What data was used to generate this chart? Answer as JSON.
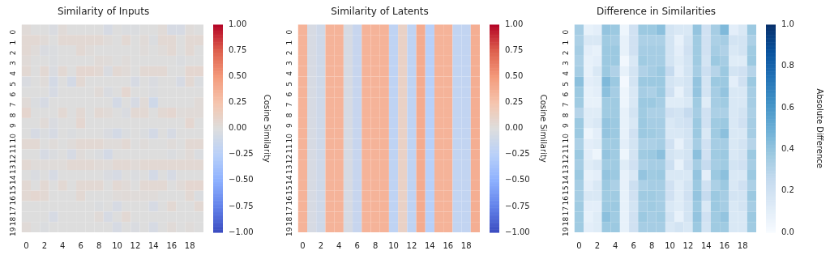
{
  "chart_data": [
    {
      "type": "heatmap",
      "title": "Similarity of Inputs",
      "clabel": "Cosine Similarity",
      "clim": [
        -1,
        1
      ],
      "cticks": [
        {
          "value": -1,
          "label": "−1.00"
        },
        {
          "value": -0.75,
          "label": "−0.75"
        },
        {
          "value": -0.5,
          "label": "−0.50"
        },
        {
          "value": -0.25,
          "label": "−0.25"
        },
        {
          "value": 0,
          "label": "0.00"
        },
        {
          "value": 0.25,
          "label": "0.25"
        },
        {
          "value": 0.5,
          "label": "0.50"
        },
        {
          "value": 0.75,
          "label": "0.75"
        },
        {
          "value": 1,
          "label": "1.00"
        }
      ],
      "categories": [
        "0",
        null,
        "2",
        null,
        "4",
        null,
        "6",
        null,
        "8",
        null,
        "10",
        null,
        "12",
        null,
        "14",
        null,
        "16",
        null,
        "18",
        null
      ],
      "y_categories": [
        "0",
        "1",
        "2",
        "3",
        "4",
        "5",
        "6",
        "7",
        "8",
        "9",
        "10",
        "11",
        "12",
        "13",
        "14",
        "15",
        "16",
        "17",
        "18",
        "19"
      ],
      "cells": [
        [
          0.03,
          0,
          0,
          -0.03,
          0.03,
          0,
          0,
          0,
          0,
          -0.05,
          0,
          -0.02,
          -0.02,
          0,
          0,
          0.03,
          -0.05,
          -0.05,
          0.02,
          0
        ],
        [
          0.05,
          0.05,
          0.03,
          0,
          0.05,
          0.05,
          0.05,
          0.05,
          0.05,
          0.02,
          0,
          0.05,
          0,
          0.03,
          -0.02,
          0.05,
          0.05,
          0,
          0.05,
          0.05
        ],
        [
          0.05,
          0.02,
          -0.03,
          -0.02,
          0,
          0,
          0.05,
          0.02,
          0,
          0,
          0,
          0,
          0,
          0.02,
          0,
          0.02,
          0.05,
          0,
          0.05,
          0
        ],
        [
          0.03,
          0,
          0,
          -0.02,
          0,
          0,
          0,
          0,
          0.03,
          0.02,
          0,
          0.02,
          0,
          0,
          0,
          0,
          0,
          -0.02,
          0,
          0
        ],
        [
          0.05,
          0,
          0.05,
          -0.03,
          0.05,
          0,
          0.07,
          0.07,
          0.05,
          -0.03,
          0.05,
          0.03,
          0,
          0.05,
          0.05,
          0.05,
          0,
          0,
          0.07,
          0.07
        ],
        [
          -0.03,
          0,
          0.02,
          -0.07,
          0,
          -0.07,
          0.05,
          0,
          0,
          0,
          0,
          0,
          -0.05,
          0,
          -0.03,
          0,
          0,
          -0.05,
          0.05,
          -0.02
        ],
        [
          0,
          0,
          0,
          -0.05,
          0,
          0,
          0,
          0,
          0.03,
          -0.03,
          0,
          0.07,
          0,
          0,
          -0.02,
          0,
          0,
          0,
          0,
          0
        ],
        [
          0.03,
          -0.02,
          -0.05,
          0,
          0,
          0,
          0,
          0,
          0,
          0,
          -0.07,
          0,
          -0.05,
          0.03,
          -0.1,
          0,
          0,
          0,
          0,
          0.03
        ],
        [
          0.08,
          0,
          0,
          0,
          0.05,
          0,
          0.05,
          0,
          0.05,
          0.03,
          0,
          -0.03,
          0.05,
          0.05,
          0,
          0.05,
          0.07,
          0.02,
          0.03,
          0.03
        ],
        [
          0,
          0,
          0.03,
          -0.03,
          0,
          0,
          0.07,
          0,
          0,
          0,
          0,
          0,
          0,
          0,
          0,
          0,
          0,
          0,
          0.07,
          0
        ],
        [
          0,
          -0.05,
          -0.02,
          -0.05,
          0,
          -0.02,
          0,
          0,
          0,
          -0.03,
          -0.07,
          -0.02,
          0,
          -0.02,
          -0.07,
          0,
          -0.05,
          0,
          0,
          0
        ],
        [
          0.05,
          0.05,
          0,
          0.02,
          0,
          0.02,
          0.05,
          0.05,
          0.05,
          0.02,
          0.02,
          0.05,
          0,
          0.02,
          0,
          0,
          0.02,
          0,
          0.05,
          0.05
        ],
        [
          0,
          0,
          -0.05,
          -0.02,
          0,
          -0.05,
          0.02,
          0,
          -0.02,
          -0.07,
          0,
          0,
          0,
          0,
          0,
          0,
          -0.02,
          0,
          0.03,
          -0.02
        ],
        [
          0.05,
          0.02,
          0.02,
          0.02,
          0.02,
          0.05,
          0.05,
          0.05,
          0.03,
          0.02,
          0.05,
          0.05,
          0.03,
          0.05,
          0.05,
          0.05,
          0.05,
          0.05,
          0.05,
          0.05
        ],
        [
          0,
          -0.03,
          0,
          -0.05,
          0,
          0,
          0,
          0,
          0,
          -0.03,
          -0.05,
          0,
          -0.02,
          0,
          -0.07,
          0,
          -0.05,
          0,
          0,
          0
        ],
        [
          0.05,
          0,
          0.05,
          0,
          0.05,
          0,
          0.05,
          0.05,
          0.05,
          0,
          0.05,
          0.03,
          0,
          0.05,
          0.05,
          0.05,
          0,
          0.03,
          0.07,
          0.07
        ],
        [
          0.05,
          0.07,
          0.05,
          0,
          0,
          0,
          0.05,
          0,
          0,
          0,
          0.02,
          0.03,
          0.02,
          0.02,
          0.02,
          0,
          0,
          0,
          0.05,
          -0.02
        ],
        [
          0,
          0,
          0,
          0,
          0,
          0,
          0,
          0,
          -0.02,
          0,
          -0.05,
          0,
          0,
          0,
          -0.05,
          0,
          0.05,
          0,
          0,
          0.05
        ],
        [
          0,
          0,
          0,
          -0.05,
          0,
          0,
          0,
          0,
          0.03,
          -0.05,
          0,
          0.05,
          0,
          0,
          0,
          0,
          0,
          0,
          0,
          0
        ],
        [
          0.03,
          0,
          -0.02,
          0,
          0,
          0,
          0,
          0,
          0,
          0,
          -0.05,
          0,
          -0.03,
          0,
          -0.05,
          0,
          0.03,
          0,
          0.02,
          0
        ]
      ]
    },
    {
      "type": "heatmap",
      "title": "Similarity of Latents",
      "clabel": "Cosine Similarity",
      "clim": [
        -1,
        1
      ],
      "cticks": [
        {
          "value": -1,
          "label": "−1.00"
        },
        {
          "value": -0.75,
          "label": "−0.75"
        },
        {
          "value": -0.5,
          "label": "−0.50"
        },
        {
          "value": -0.25,
          "label": "−0.25"
        },
        {
          "value": 0,
          "label": "0.00"
        },
        {
          "value": 0.25,
          "label": "0.25"
        },
        {
          "value": 0.5,
          "label": "0.50"
        },
        {
          "value": 0.75,
          "label": "0.75"
        },
        {
          "value": 1,
          "label": "1.00"
        }
      ],
      "categories": [
        "0",
        null,
        "2",
        null,
        "4",
        null,
        "6",
        null,
        "8",
        null,
        "10",
        null,
        "12",
        null,
        "14",
        null,
        "16",
        null,
        "18",
        null
      ],
      "y_categories": [
        "0",
        "1",
        "2",
        "3",
        "4",
        "5",
        "6",
        "7",
        "8",
        "9",
        "10",
        "11",
        "12",
        "13",
        "14",
        "15",
        "16",
        "17",
        "18",
        "19"
      ],
      "cells": [
        [
          0.35,
          -0.05,
          -0.1,
          0.35,
          0.35,
          -0.05,
          -0.15,
          0.35,
          0.35,
          0.35,
          -0.2,
          0.12,
          -0.2,
          0.4,
          -0.25,
          0.35,
          0.35,
          -0.18,
          -0.18,
          0.38
        ],
        [
          0.35,
          -0.05,
          -0.1,
          0.35,
          0.35,
          -0.05,
          -0.15,
          0.35,
          0.35,
          0.35,
          -0.2,
          0.12,
          -0.2,
          0.4,
          -0.25,
          0.35,
          0.35,
          -0.18,
          -0.18,
          0.38
        ],
        [
          0.35,
          -0.05,
          -0.1,
          0.35,
          0.35,
          -0.05,
          -0.15,
          0.35,
          0.35,
          0.35,
          -0.2,
          0.12,
          -0.2,
          0.4,
          -0.25,
          0.35,
          0.35,
          -0.18,
          -0.18,
          0.38
        ],
        [
          0.35,
          -0.05,
          -0.1,
          0.35,
          0.35,
          -0.05,
          -0.15,
          0.35,
          0.35,
          0.35,
          -0.2,
          0.12,
          -0.2,
          0.4,
          -0.25,
          0.35,
          0.35,
          -0.18,
          -0.18,
          0.38
        ],
        [
          0.35,
          -0.05,
          -0.1,
          0.35,
          0.35,
          -0.05,
          -0.15,
          0.35,
          0.35,
          0.35,
          -0.2,
          0.12,
          -0.2,
          0.4,
          -0.25,
          0.35,
          0.35,
          -0.18,
          -0.18,
          0.38
        ],
        [
          0.35,
          -0.05,
          -0.1,
          0.35,
          0.35,
          -0.05,
          -0.15,
          0.35,
          0.35,
          0.35,
          -0.2,
          0.12,
          -0.2,
          0.4,
          -0.25,
          0.35,
          0.35,
          -0.18,
          -0.18,
          0.38
        ],
        [
          0.35,
          -0.05,
          -0.1,
          0.35,
          0.35,
          -0.05,
          -0.15,
          0.35,
          0.35,
          0.35,
          -0.2,
          0.12,
          -0.2,
          0.4,
          -0.25,
          0.35,
          0.35,
          -0.18,
          -0.18,
          0.38
        ],
        [
          0.35,
          -0.05,
          -0.1,
          0.35,
          0.35,
          -0.05,
          -0.15,
          0.35,
          0.35,
          0.35,
          -0.2,
          0.12,
          -0.2,
          0.4,
          -0.25,
          0.35,
          0.35,
          -0.18,
          -0.18,
          0.38
        ],
        [
          0.35,
          -0.05,
          -0.1,
          0.35,
          0.35,
          -0.05,
          -0.15,
          0.35,
          0.35,
          0.35,
          -0.2,
          0.12,
          -0.2,
          0.4,
          -0.25,
          0.35,
          0.35,
          -0.18,
          -0.18,
          0.38
        ],
        [
          0.35,
          -0.05,
          -0.1,
          0.35,
          0.35,
          -0.05,
          -0.15,
          0.35,
          0.35,
          0.35,
          -0.2,
          0.12,
          -0.2,
          0.4,
          -0.25,
          0.35,
          0.35,
          -0.18,
          -0.18,
          0.38
        ],
        [
          0.35,
          -0.05,
          -0.1,
          0.35,
          0.35,
          -0.05,
          -0.15,
          0.35,
          0.35,
          0.35,
          -0.2,
          0.12,
          -0.2,
          0.4,
          -0.25,
          0.35,
          0.35,
          -0.18,
          -0.18,
          0.38
        ],
        [
          0.35,
          -0.05,
          -0.1,
          0.35,
          0.35,
          -0.05,
          -0.15,
          0.35,
          0.35,
          0.35,
          -0.2,
          0.12,
          -0.2,
          0.4,
          -0.25,
          0.35,
          0.35,
          -0.18,
          -0.18,
          0.38
        ],
        [
          0.35,
          -0.05,
          -0.1,
          0.35,
          0.35,
          -0.05,
          -0.15,
          0.35,
          0.35,
          0.35,
          -0.2,
          0.12,
          -0.2,
          0.4,
          -0.25,
          0.35,
          0.35,
          -0.18,
          -0.18,
          0.38
        ],
        [
          0.35,
          -0.05,
          -0.1,
          0.35,
          0.35,
          -0.05,
          -0.15,
          0.35,
          0.35,
          0.35,
          -0.2,
          0.12,
          -0.2,
          0.4,
          -0.25,
          0.35,
          0.35,
          -0.18,
          -0.18,
          0.38
        ],
        [
          0.35,
          -0.05,
          -0.1,
          0.35,
          0.35,
          -0.05,
          -0.15,
          0.35,
          0.35,
          0.35,
          -0.2,
          0.12,
          -0.2,
          0.4,
          -0.25,
          0.35,
          0.35,
          -0.18,
          -0.18,
          0.38
        ],
        [
          0.35,
          -0.05,
          -0.1,
          0.35,
          0.35,
          -0.05,
          -0.15,
          0.35,
          0.35,
          0.35,
          -0.2,
          0.12,
          -0.2,
          0.4,
          -0.25,
          0.35,
          0.35,
          -0.18,
          -0.18,
          0.38
        ],
        [
          0.35,
          -0.05,
          -0.1,
          0.35,
          0.35,
          -0.05,
          -0.15,
          0.35,
          0.35,
          0.35,
          -0.2,
          0.12,
          -0.2,
          0.4,
          -0.25,
          0.35,
          0.35,
          -0.18,
          -0.18,
          0.38
        ],
        [
          0.35,
          -0.05,
          -0.1,
          0.35,
          0.35,
          -0.05,
          -0.15,
          0.35,
          0.35,
          0.35,
          -0.2,
          0.12,
          -0.2,
          0.4,
          -0.25,
          0.35,
          0.35,
          -0.18,
          -0.18,
          0.38
        ],
        [
          0.35,
          -0.05,
          -0.1,
          0.35,
          0.35,
          -0.05,
          -0.15,
          0.35,
          0.35,
          0.35,
          -0.2,
          0.12,
          -0.2,
          0.4,
          -0.25,
          0.35,
          0.35,
          -0.18,
          -0.18,
          0.38
        ],
        [
          0.35,
          -0.05,
          -0.1,
          0.35,
          0.35,
          -0.05,
          -0.15,
          0.35,
          0.35,
          0.35,
          -0.2,
          0.12,
          -0.2,
          0.4,
          -0.25,
          0.35,
          0.35,
          -0.18,
          -0.18,
          0.38
        ]
      ]
    },
    {
      "type": "heatmap",
      "title": "Difference in Similarities",
      "clabel": "Absolute Difference",
      "clim": [
        0,
        1
      ],
      "cticks": [
        {
          "value": 0,
          "label": "0.0"
        },
        {
          "value": 0.2,
          "label": "0.2"
        },
        {
          "value": 0.4,
          "label": "0.4"
        },
        {
          "value": 0.6,
          "label": "0.6"
        },
        {
          "value": 0.8,
          "label": "0.8"
        },
        {
          "value": 1,
          "label": "1.0"
        }
      ],
      "categories": [
        "0",
        null,
        "2",
        null,
        "4",
        null,
        "6",
        null,
        "8",
        null,
        "10",
        null,
        "12",
        null,
        "14",
        null,
        "16",
        null,
        "18",
        null
      ],
      "y_categories": [
        "0",
        "1",
        "2",
        "3",
        "4",
        "5",
        "6",
        "7",
        "8",
        "9",
        "10",
        "11",
        "12",
        "13",
        "14",
        "15",
        "16",
        "17",
        "18",
        "19"
      ],
      "cells": [
        [
          0.35,
          0.08,
          0.1,
          0.4,
          0.38,
          0.05,
          0.2,
          0.38,
          0.38,
          0.42,
          0.18,
          0.15,
          0.15,
          0.4,
          0.2,
          0.35,
          0.45,
          0.1,
          0.15,
          0.38
        ],
        [
          0.33,
          0.15,
          0.15,
          0.37,
          0.35,
          0.08,
          0.2,
          0.33,
          0.33,
          0.33,
          0.18,
          0.08,
          0.18,
          0.37,
          0.2,
          0.33,
          0.35,
          0.18,
          0.18,
          0.33
        ],
        [
          0.35,
          0.1,
          0.08,
          0.38,
          0.38,
          0.08,
          0.2,
          0.35,
          0.35,
          0.35,
          0.18,
          0.1,
          0.2,
          0.37,
          0.2,
          0.35,
          0.32,
          0.15,
          0.18,
          0.37
        ],
        [
          0.33,
          0.08,
          0.1,
          0.38,
          0.38,
          0.03,
          0.15,
          0.37,
          0.35,
          0.35,
          0.18,
          0.12,
          0.18,
          0.37,
          0.18,
          0.38,
          0.35,
          0.12,
          0.12,
          0.38
        ],
        [
          0.35,
          0.08,
          0.15,
          0.38,
          0.32,
          0.08,
          0.18,
          0.32,
          0.35,
          0.38,
          0.25,
          0.1,
          0.18,
          0.35,
          0.22,
          0.3,
          0.38,
          0.18,
          0.2,
          0.3
        ],
        [
          0.42,
          0.1,
          0.12,
          0.45,
          0.38,
          0.02,
          0.18,
          0.38,
          0.38,
          0.38,
          0.18,
          0.15,
          0.18,
          0.4,
          0.18,
          0.38,
          0.38,
          0.1,
          0.2,
          0.38
        ],
        [
          0.38,
          0.08,
          0.1,
          0.42,
          0.35,
          0.05,
          0.15,
          0.35,
          0.33,
          0.38,
          0.2,
          0.08,
          0.18,
          0.4,
          0.18,
          0.35,
          0.4,
          0.15,
          0.15,
          0.35
        ],
        [
          0.37,
          0.08,
          0.08,
          0.37,
          0.37,
          0.05,
          0.15,
          0.38,
          0.38,
          0.35,
          0.12,
          0.12,
          0.15,
          0.37,
          0.12,
          0.35,
          0.37,
          0.15,
          0.15,
          0.35
        ],
        [
          0.3,
          0.12,
          0.12,
          0.37,
          0.37,
          0.08,
          0.18,
          0.37,
          0.33,
          0.33,
          0.2,
          0.18,
          0.25,
          0.35,
          0.2,
          0.33,
          0.33,
          0.15,
          0.18,
          0.33
        ],
        [
          0.38,
          0.12,
          0.15,
          0.4,
          0.38,
          0.08,
          0.15,
          0.38,
          0.35,
          0.35,
          0.15,
          0.18,
          0.2,
          0.38,
          0.2,
          0.37,
          0.38,
          0.15,
          0.2,
          0.35
        ],
        [
          0.38,
          0.05,
          0.1,
          0.4,
          0.38,
          0.08,
          0.2,
          0.38,
          0.37,
          0.35,
          0.15,
          0.15,
          0.18,
          0.38,
          0.15,
          0.37,
          0.42,
          0.15,
          0.15,
          0.35
        ],
        [
          0.33,
          0.1,
          0.12,
          0.37,
          0.37,
          0.1,
          0.18,
          0.33,
          0.33,
          0.35,
          0.2,
          0.08,
          0.18,
          0.35,
          0.2,
          0.35,
          0.35,
          0.15,
          0.18,
          0.3
        ],
        [
          0.38,
          0.1,
          0.05,
          0.4,
          0.37,
          0.05,
          0.18,
          0.37,
          0.38,
          0.42,
          0.18,
          0.15,
          0.18,
          0.42,
          0.2,
          0.37,
          0.38,
          0.15,
          0.18,
          0.38
        ],
        [
          0.35,
          0.12,
          0.15,
          0.37,
          0.37,
          0.12,
          0.2,
          0.33,
          0.35,
          0.35,
          0.22,
          0.08,
          0.2,
          0.35,
          0.25,
          0.35,
          0.37,
          0.18,
          0.2,
          0.35
        ],
        [
          0.38,
          0.08,
          0.1,
          0.4,
          0.38,
          0.08,
          0.15,
          0.4,
          0.37,
          0.38,
          0.15,
          0.15,
          0.15,
          0.4,
          0.1,
          0.38,
          0.42,
          0.15,
          0.15,
          0.38
        ],
        [
          0.35,
          0.1,
          0.15,
          0.38,
          0.33,
          0.08,
          0.22,
          0.33,
          0.35,
          0.35,
          0.2,
          0.12,
          0.18,
          0.38,
          0.2,
          0.33,
          0.38,
          0.15,
          0.2,
          0.33
        ],
        [
          0.35,
          0.15,
          0.15,
          0.37,
          0.37,
          0.08,
          0.2,
          0.37,
          0.37,
          0.35,
          0.2,
          0.12,
          0.2,
          0.4,
          0.25,
          0.38,
          0.35,
          0.18,
          0.18,
          0.38
        ],
        [
          0.37,
          0.1,
          0.1,
          0.38,
          0.38,
          0.08,
          0.18,
          0.35,
          0.37,
          0.35,
          0.15,
          0.12,
          0.18,
          0.38,
          0.15,
          0.38,
          0.35,
          0.15,
          0.18,
          0.35
        ],
        [
          0.37,
          0.08,
          0.12,
          0.42,
          0.37,
          0.08,
          0.2,
          0.38,
          0.35,
          0.37,
          0.18,
          0.08,
          0.18,
          0.4,
          0.2,
          0.37,
          0.4,
          0.15,
          0.15,
          0.38
        ],
        [
          0.37,
          0.1,
          0.12,
          0.38,
          0.38,
          0.08,
          0.2,
          0.35,
          0.35,
          0.35,
          0.15,
          0.18,
          0.15,
          0.38,
          0.18,
          0.37,
          0.37,
          0.15,
          0.15,
          0.37
        ]
      ]
    }
  ]
}
